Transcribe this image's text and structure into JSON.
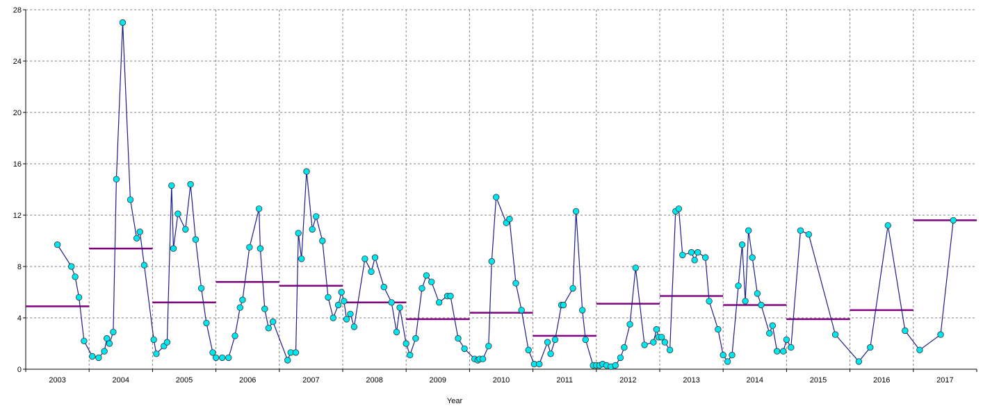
{
  "chart_data": {
    "type": "line",
    "xlabel": "Year",
    "ylabel": "",
    "title": "",
    "ylim": [
      0,
      28
    ],
    "yticks": [
      0,
      4,
      8,
      12,
      16,
      20,
      24,
      28
    ],
    "categories": [
      "2003",
      "2004",
      "2005",
      "2006",
      "2007",
      "2008",
      "2009",
      "2010",
      "2011",
      "2012",
      "2013",
      "2014",
      "2015",
      "2016",
      "2017"
    ],
    "grid": true,
    "colors": {
      "line": "#1a1a8c",
      "marker": "#00e5ee",
      "marker_edge": "#333333",
      "mean": "#800080",
      "grid": "#808080"
    },
    "series": [
      {
        "values": [
          [
            2003.0,
            9.7
          ],
          [
            2003.22,
            8.0
          ],
          [
            2003.28,
            7.2
          ],
          [
            2003.34,
            5.6
          ],
          [
            2003.42,
            2.2
          ],
          [
            2003.55,
            1.0
          ],
          [
            2003.65,
            0.9
          ],
          [
            2003.74,
            1.4
          ],
          [
            2003.78,
            2.4
          ],
          [
            2003.82,
            2.0
          ],
          [
            2003.88,
            2.9
          ],
          [
            2003.93,
            14.8
          ],
          [
            2004.03,
            27.0
          ],
          [
            2004.15,
            13.2
          ],
          [
            2004.25,
            10.2
          ],
          [
            2004.3,
            10.7
          ],
          [
            2004.37,
            8.1
          ],
          [
            2004.52,
            2.3
          ],
          [
            2004.56,
            1.2
          ],
          [
            2004.68,
            1.8
          ],
          [
            2004.73,
            2.1
          ],
          [
            2004.8,
            14.3
          ],
          [
            2004.83,
            9.4
          ],
          [
            2004.9,
            12.1
          ],
          [
            2005.02,
            10.9
          ],
          [
            2005.1,
            14.4
          ],
          [
            2005.18,
            10.1
          ],
          [
            2005.27,
            6.3
          ],
          [
            2005.35,
            3.6
          ],
          [
            2005.45,
            1.3
          ],
          [
            2005.5,
            0.9
          ],
          [
            2005.6,
            0.9
          ],
          [
            2005.7,
            0.9
          ],
          [
            2005.8,
            2.6
          ],
          [
            2005.88,
            4.8
          ],
          [
            2005.92,
            5.4
          ],
          [
            2006.03,
            9.5
          ],
          [
            2006.18,
            12.5
          ],
          [
            2006.2,
            9.4
          ],
          [
            2006.27,
            4.7
          ],
          [
            2006.33,
            3.2
          ],
          [
            2006.4,
            3.7
          ],
          [
            2006.63,
            0.7
          ],
          [
            2006.68,
            1.3
          ],
          [
            2006.76,
            1.3
          ],
          [
            2006.8,
            10.6
          ],
          [
            2006.85,
            8.6
          ],
          [
            2006.93,
            15.4
          ],
          [
            2007.02,
            10.9
          ],
          [
            2007.08,
            11.9
          ],
          [
            2007.18,
            10.0
          ],
          [
            2007.27,
            5.6
          ],
          [
            2007.35,
            4.0
          ],
          [
            2007.43,
            5.0
          ],
          [
            2007.48,
            6.0
          ],
          [
            2007.52,
            5.3
          ],
          [
            2007.56,
            3.9
          ],
          [
            2007.62,
            4.3
          ],
          [
            2007.68,
            3.3
          ],
          [
            2007.85,
            8.6
          ],
          [
            2007.95,
            7.6
          ],
          [
            2008.01,
            8.7
          ],
          [
            2008.15,
            6.4
          ],
          [
            2008.27,
            5.2
          ],
          [
            2008.35,
            2.9
          ],
          [
            2008.4,
            4.8
          ],
          [
            2008.5,
            2.0
          ],
          [
            2008.56,
            1.1
          ],
          [
            2008.65,
            2.4
          ],
          [
            2008.75,
            6.3
          ],
          [
            2008.82,
            7.3
          ],
          [
            2008.9,
            6.8
          ],
          [
            2009.02,
            5.2
          ],
          [
            2009.15,
            5.7
          ],
          [
            2009.2,
            5.7
          ],
          [
            2009.32,
            2.4
          ],
          [
            2009.42,
            1.6
          ],
          [
            2009.58,
            0.8
          ],
          [
            2009.63,
            0.7
          ],
          [
            2009.66,
            0.8
          ],
          [
            2009.71,
            0.8
          ],
          [
            2009.8,
            1.8
          ],
          [
            2009.85,
            8.4
          ],
          [
            2009.92,
            13.4
          ],
          [
            2010.08,
            11.4
          ],
          [
            2010.13,
            11.7
          ],
          [
            2010.23,
            6.7
          ],
          [
            2010.32,
            4.6
          ],
          [
            2010.43,
            1.5
          ],
          [
            2010.52,
            0.4
          ],
          [
            2010.6,
            0.4
          ],
          [
            2010.73,
            2.1
          ],
          [
            2010.78,
            1.2
          ],
          [
            2010.85,
            2.3
          ],
          [
            2010.95,
            5.0
          ],
          [
            2010.98,
            5.0
          ],
          [
            2011.13,
            6.3
          ],
          [
            2011.18,
            12.3
          ],
          [
            2011.28,
            4.6
          ],
          [
            2011.33,
            2.3
          ],
          [
            2011.45,
            0.3
          ],
          [
            2011.5,
            0.3
          ],
          [
            2011.55,
            0.3
          ],
          [
            2011.6,
            0.4
          ],
          [
            2011.66,
            0.3
          ],
          [
            2011.73,
            0.2
          ],
          [
            2011.8,
            0.3
          ],
          [
            2011.88,
            0.9
          ],
          [
            2011.94,
            1.7
          ],
          [
            2012.03,
            3.5
          ],
          [
            2012.12,
            7.9
          ],
          [
            2012.26,
            1.9
          ],
          [
            2012.4,
            2.1
          ],
          [
            2012.45,
            3.1
          ],
          [
            2012.48,
            2.5
          ],
          [
            2012.53,
            2.5
          ],
          [
            2012.58,
            2.1
          ],
          [
            2012.66,
            1.5
          ],
          [
            2012.75,
            12.3
          ],
          [
            2012.8,
            12.5
          ],
          [
            2012.86,
            8.9
          ],
          [
            2013.0,
            9.1
          ],
          [
            2013.05,
            8.5
          ],
          [
            2013.1,
            9.1
          ],
          [
            2013.22,
            8.7
          ],
          [
            2013.28,
            5.3
          ],
          [
            2013.42,
            3.1
          ],
          [
            2013.5,
            1.1
          ],
          [
            2013.57,
            0.6
          ],
          [
            2013.64,
            1.1
          ],
          [
            2013.74,
            6.5
          ],
          [
            2013.8,
            9.7
          ],
          [
            2013.85,
            5.3
          ],
          [
            2013.9,
            10.8
          ],
          [
            2013.96,
            8.7
          ],
          [
            2014.04,
            5.9
          ],
          [
            2014.1,
            5.0
          ],
          [
            2014.23,
            2.8
          ],
          [
            2014.28,
            3.4
          ],
          [
            2014.35,
            1.4
          ],
          [
            2014.45,
            1.4
          ],
          [
            2014.5,
            2.3
          ],
          [
            2014.57,
            1.7
          ],
          [
            2014.72,
            10.8
          ],
          [
            2014.85,
            10.5
          ],
          [
            2015.27,
            2.7
          ],
          [
            2015.64,
            0.6
          ],
          [
            2015.82,
            1.7
          ],
          [
            2016.1,
            11.2
          ],
          [
            2016.37,
            3.0
          ],
          [
            2016.6,
            1.5
          ],
          [
            2016.93,
            2.7
          ],
          [
            2017.13,
            11.6
          ]
        ]
      },
      {
        "values": [
          {
            "x0": 2002.5,
            "x1": 2003.5,
            "y": 4.9
          },
          {
            "x0": 2003.5,
            "x1": 2004.5,
            "y": 9.4
          },
          {
            "x0": 2004.5,
            "x1": 2005.5,
            "y": 5.2
          },
          {
            "x0": 2005.5,
            "x1": 2006.5,
            "y": 6.8
          },
          {
            "x0": 2006.5,
            "x1": 2007.5,
            "y": 6.5
          },
          {
            "x0": 2007.5,
            "x1": 2008.5,
            "y": 5.2
          },
          {
            "x0": 2008.5,
            "x1": 2009.5,
            "y": 3.9
          },
          {
            "x0": 2009.5,
            "x1": 2010.5,
            "y": 4.4
          },
          {
            "x0": 2010.5,
            "x1": 2011.5,
            "y": 2.6
          },
          {
            "x0": 2011.5,
            "x1": 2012.5,
            "y": 5.1
          },
          {
            "x0": 2012.5,
            "x1": 2013.5,
            "y": 5.7
          },
          {
            "x0": 2013.5,
            "x1": 2014.5,
            "y": 5.0
          },
          {
            "x0": 2014.5,
            "x1": 2015.5,
            "y": 3.9
          },
          {
            "x0": 2015.5,
            "x1": 2016.5,
            "y": 4.6
          },
          {
            "x0": 2016.5,
            "x1": 2017.5,
            "y": 11.6
          }
        ]
      }
    ]
  }
}
